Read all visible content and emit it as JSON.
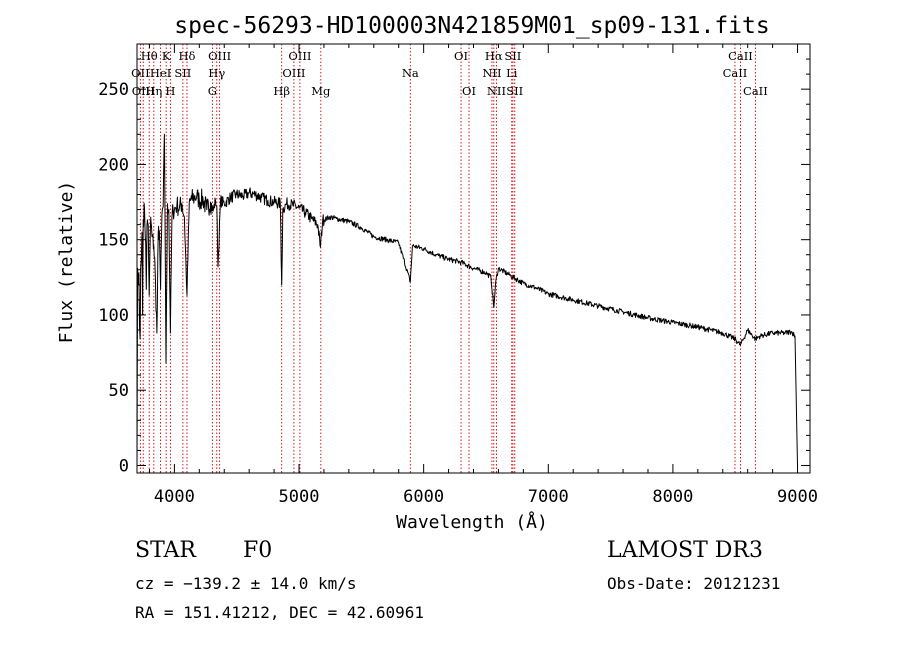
{
  "chart_data": {
    "type": "line",
    "title": "spec-56293-HD100003N421859M01_sp09-131.fits",
    "xlabel": "Wavelength (Å)",
    "ylabel": "Flux (relative)",
    "xlim": [
      3700,
      9100
    ],
    "ylim": [
      -5,
      280
    ],
    "xticks": [
      4000,
      5000,
      6000,
      7000,
      8000,
      9000
    ],
    "xtick_labels": [
      "4000",
      "5000",
      "6000",
      "7000",
      "8000",
      "9000"
    ],
    "yticks": [
      0,
      50,
      100,
      150,
      200,
      250
    ],
    "ytick_labels": [
      "0",
      "50",
      "100",
      "150",
      "200",
      "250"
    ],
    "grid": false,
    "spectrum": {
      "x": [
        3700,
        3705,
        3710,
        3715,
        3720,
        3725,
        3730,
        3735,
        3740,
        3745,
        3750,
        3760,
        3770,
        3775,
        3780,
        3790,
        3798,
        3810,
        3820,
        3835,
        3845,
        3860,
        3870,
        3880,
        3889,
        3900,
        3910,
        3920,
        3933,
        3945,
        3955,
        3968,
        3980,
        3990,
        4000,
        4020,
        4040,
        4060,
        4080,
        4101,
        4120,
        4140,
        4160,
        4180,
        4200,
        4230,
        4260,
        4290,
        4310,
        4330,
        4340,
        4350,
        4370,
        4400,
        4450,
        4500,
        4550,
        4600,
        4650,
        4700,
        4750,
        4800,
        4850,
        4861,
        4870,
        4900,
        4950,
        5000,
        5050,
        5100,
        5150,
        5172,
        5190,
        5250,
        5300,
        5400,
        5500,
        5600,
        5700,
        5800,
        5893,
        5910,
        6000,
        6100,
        6200,
        6300,
        6400,
        6500,
        6540,
        6563,
        6580,
        6600,
        6700,
        6800,
        6900,
        7000,
        7200,
        7400,
        7600,
        7800,
        8000,
        8200,
        8400,
        8498,
        8520,
        8542,
        8600,
        8662,
        8700,
        8800,
        8900,
        8950,
        8980,
        9000
      ],
      "y": [
        0,
        131,
        120,
        128,
        93,
        84,
        131,
        138,
        155,
        100,
        163,
        171,
        148,
        117,
        160,
        160,
        113,
        165,
        152,
        146,
        130,
        88,
        154,
        156,
        117,
        166,
        172,
        220,
        68,
        174,
        170,
        88,
        164,
        170,
        170,
        173,
        171,
        174,
        165,
        113,
        175,
        177,
        178,
        179,
        176,
        177,
        170,
        175,
        169,
        176,
        172,
        132,
        176,
        174,
        178,
        180,
        179,
        181,
        180,
        178,
        176,
        175,
        174,
        120,
        170,
        174,
        173,
        171,
        168,
        164,
        160,
        145,
        163,
        165,
        164,
        162,
        158,
        152,
        150,
        148,
        122,
        146,
        144,
        140,
        137,
        135,
        131,
        128,
        125,
        105,
        123,
        131,
        126,
        121,
        118,
        114,
        110,
        106,
        102,
        98,
        95,
        92,
        88,
        84,
        82,
        80,
        90,
        84,
        86,
        88,
        88,
        89,
        86,
        0
      ]
    },
    "lines": [
      {
        "name": "Hθ",
        "x": 3798,
        "row": 1
      },
      {
        "name": "OII",
        "x": 3727,
        "row": 2
      },
      {
        "name": "HeI",
        "x": 3889,
        "row": 2
      },
      {
        "name": "OIII",
        "x": 3750,
        "row": 3
      },
      {
        "name": "Hη",
        "x": 3835,
        "row": 3
      },
      {
        "name": "K",
        "x": 3934,
        "row": 1
      },
      {
        "name": "SII",
        "x": 4068,
        "row": 2
      },
      {
        "name": "H",
        "x": 3968,
        "row": 3
      },
      {
        "name": "Hδ",
        "x": 4101,
        "row": 1
      },
      {
        "name": "OIII",
        "x": 4363,
        "row": 1
      },
      {
        "name": "Hγ",
        "x": 4340,
        "row": 2
      },
      {
        "name": "G",
        "x": 4305,
        "row": 3
      },
      {
        "name": "Hβ",
        "x": 4861,
        "row": 3
      },
      {
        "name": "OIII",
        "x": 5007,
        "row": 1
      },
      {
        "name": "OIII",
        "x": 4959,
        "row": 2
      },
      {
        "name": "Mg",
        "x": 5175,
        "row": 3
      },
      {
        "name": "Na",
        "x": 5893,
        "row": 2
      },
      {
        "name": "OI",
        "x": 6300,
        "row": 1
      },
      {
        "name": "OI",
        "x": 6364,
        "row": 3
      },
      {
        "name": "Hα",
        "x": 6563,
        "row": 1
      },
      {
        "name": "SII",
        "x": 6716,
        "row": 1
      },
      {
        "name": "NII",
        "x": 6548,
        "row": 2
      },
      {
        "name": "Li",
        "x": 6707,
        "row": 2
      },
      {
        "name": "NII",
        "x": 6584,
        "row": 3
      },
      {
        "name": "SII",
        "x": 6731,
        "row": 3
      },
      {
        "name": "CaII",
        "x": 8542,
        "row": 1
      },
      {
        "name": "CaII",
        "x": 8498,
        "row": 2
      },
      {
        "name": "CaII",
        "x": 8662,
        "row": 3
      }
    ]
  },
  "footer": {
    "object_class": "STAR",
    "subclass": "F0",
    "survey": "LAMOST DR3",
    "cz": "cz = −139.2 ± 14.0 km/s",
    "obs_date": "Obs-Date: 20121231",
    "coords": "RA = 151.41212, DEC =  42.60961"
  },
  "colors": {
    "spectrum": "#000000",
    "line_marker": "#cc0000"
  }
}
